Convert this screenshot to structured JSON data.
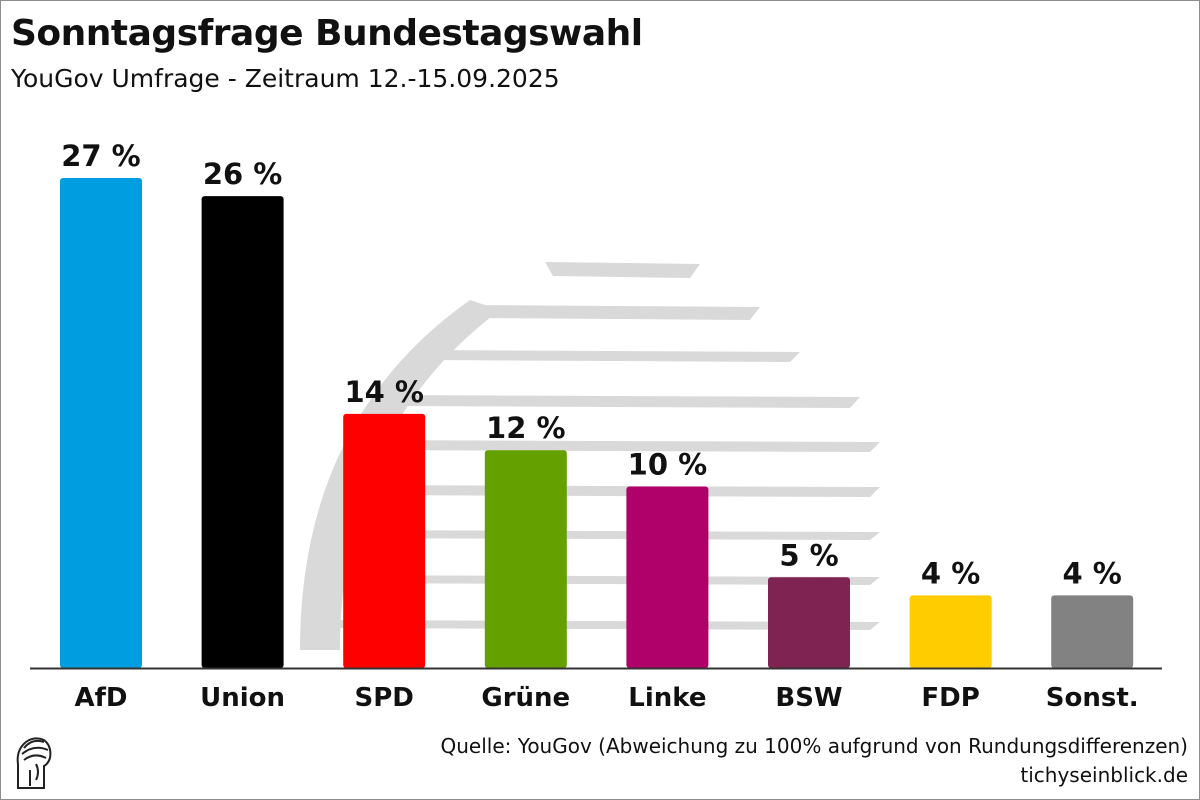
{
  "header": {
    "title": "Sonntagsfrage Bundestagswahl",
    "subtitle": "YouGov Umfrage - Zeitraum 12.-15.09.2025"
  },
  "footer": {
    "source": "Quelle: YouGov (Abweichung zu 100% aufgrund von Rundungsdifferenzen)",
    "site": "tichyseinblick.de"
  },
  "colors": {
    "axis": "#333333",
    "watermark": "#d9d9d9"
  },
  "chart_data": {
    "type": "bar",
    "title": "Sonntagsfrage Bundestagswahl",
    "subtitle": "YouGov Umfrage - Zeitraum 12.-15.09.2025",
    "xlabel": "",
    "ylabel": "",
    "unit": "%",
    "ylim": [
      0,
      27
    ],
    "grid": false,
    "categories": [
      "AfD",
      "Union",
      "SPD",
      "Grüne",
      "Linke",
      "BSW",
      "FDP",
      "Sonst."
    ],
    "values": [
      27,
      26,
      14,
      12,
      10,
      5,
      4,
      4
    ],
    "value_labels": [
      "27 %",
      "26 %",
      "14 %",
      "12 %",
      "10 %",
      "5 %",
      "4 %",
      "4 %"
    ],
    "bar_colors": [
      "#009ee0",
      "#000000",
      "#ff0000",
      "#64a000",
      "#b0006a",
      "#7f2352",
      "#ffcc00",
      "#828282"
    ]
  }
}
